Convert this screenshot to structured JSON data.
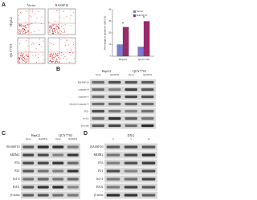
{
  "panel_a": {
    "label": "A",
    "columns": [
      "Vector",
      "RASSF10"
    ],
    "rows": [
      "HepG2",
      "QGY7703"
    ]
  },
  "chart_data": {
    "type": "bar",
    "ylabel": "Percentage of apoptotic cells (%)",
    "categories": [
      "HepG2",
      "QGY7703"
    ],
    "series": [
      {
        "name": "Vector",
        "color": "#7b7bd6",
        "values": [
          10,
          8
        ]
      },
      {
        "name": "RASSF10",
        "color": "#9b2a6b",
        "values": [
          25,
          30
        ]
      }
    ],
    "ylim": [
      0,
      40
    ],
    "yticks": [
      0,
      10,
      20,
      30,
      40
    ],
    "annotations": [
      "*",
      "*"
    ]
  },
  "panel_b": {
    "label": "B",
    "groups": [
      "HepG2",
      "QGY7703"
    ],
    "lanes": [
      "Vector",
      "RASSF10",
      "Vector",
      "RASSF10"
    ],
    "rows": [
      "RASSF10",
      "caspase-9",
      "caspase-3",
      "cleaved caspase-3",
      "P21",
      "bcl-2",
      "β-actin"
    ]
  },
  "panel_c": {
    "label": "C",
    "groups": [
      "HepG2",
      "QGY7703"
    ],
    "lanes": [
      "Vector",
      "RASSF10",
      "Vector",
      "RASSF10"
    ],
    "rows": [
      "RASSF10",
      "MDM2",
      "P53",
      "P21",
      "bcl-2",
      "BAX",
      "β-actin"
    ]
  },
  "panel_d": {
    "label": "D",
    "groups": [
      "DXG"
    ],
    "lanes": [
      "0",
      "5",
      "10"
    ],
    "rows": [
      "RASSF10",
      "MDM2",
      "P53",
      "P21",
      "bcl-2",
      "BAX",
      "β-actin"
    ]
  }
}
